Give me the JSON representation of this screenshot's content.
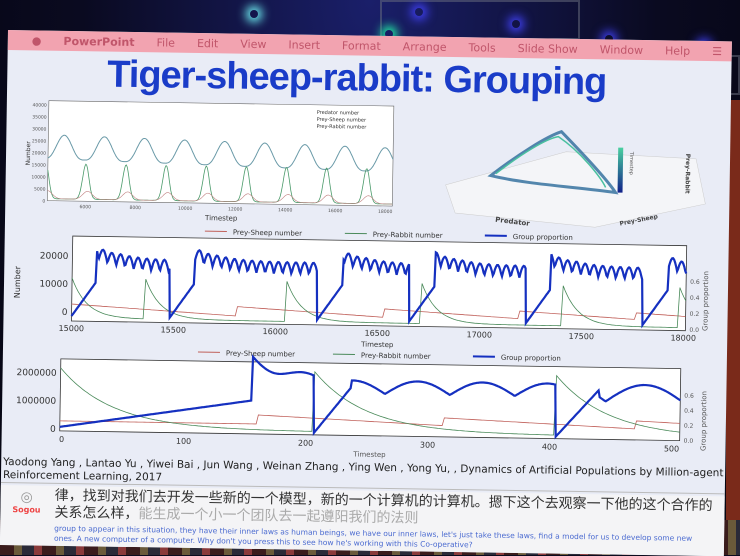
{
  "menubar": {
    "app": "PowerPoint",
    "items": [
      "File",
      "Edit",
      "View",
      "Insert",
      "Format",
      "Arrange",
      "Tools",
      "Slide Show",
      "Window",
      "Help"
    ]
  },
  "slide": {
    "title": "Tiger-sheep-rabbit: Grouping",
    "chart_top": {
      "ylabel": "Number",
      "xlabel": "Timestep",
      "legend": [
        "Predator number",
        "Prey-Sheep number",
        "Prey-Rabbit number"
      ],
      "yticks": [
        "0",
        "5000",
        "10000",
        "15000",
        "20000",
        "25000",
        "30000",
        "35000",
        "40000"
      ],
      "xticks": [
        "6000",
        "8000",
        "10000",
        "12000",
        "14000",
        "16000",
        "18000"
      ]
    },
    "chart_3d": {
      "xlabel": "Predator",
      "ylabel": "Prey-Sheep",
      "zlabel": "Prey-Rabbit",
      "colorbar_label": "Timestep"
    },
    "chart_mid": {
      "ylabel": "Number",
      "y2label": "Group proportion",
      "xlabel": "Timestep",
      "legend": [
        "Prey-Sheep number",
        "Prey-Rabbit number",
        "Group proportion"
      ],
      "yticks": [
        "0",
        "10000",
        "20000"
      ],
      "y2ticks": [
        "0.0",
        "0.2",
        "0.4",
        "0.6"
      ],
      "xticks": [
        "15000",
        "15500",
        "16000",
        "16500",
        "17000",
        "17500",
        "18000"
      ]
    },
    "chart_bottom": {
      "y2label": "Group proportion",
      "xlabel": "Timestep",
      "legend": [
        "Prey-Sheep number",
        "Prey-Rabbit number",
        "Group proportion"
      ],
      "yticks": [
        "0",
        "1000000",
        "2000000"
      ],
      "y2ticks": [
        "0.0",
        "0.2",
        "0.4",
        "0.6"
      ],
      "xticks": [
        "0",
        "100",
        "200",
        "300",
        "400",
        "500"
      ]
    },
    "citation": "Yaodong Yang , Lantao Yu , Yiwei Bai , Jun Wang , Weinan Zhang , Ying Wen , Yong Yu, , Dynamics of Artificial Populations by Million-agent Reinforcement Learning, 2017"
  },
  "subtitles": {
    "logo_text": "Sogou",
    "zh_line1": "律，找到对我们去开发一些新的一个模型，新的一个计算机的计算机。摁下这个去观察一下他的这个合作的",
    "zh_line2a": "关系怎么样，",
    "zh_line2b": "能生成一个小一个团队去一起遵阳我们的法则",
    "en": "group to appear in this situation, they have their inner laws as human beings, we have our inner laws, let's just take these laws, find a model for us to develop some new ones. A new computer of a computer. Why don't you press this to see how he's working with this Co-operative?"
  },
  "colors": {
    "title": "#1a3cc8",
    "group": "#1530c0",
    "sheep": "#c0605a",
    "rabbit": "#4a9a6a",
    "predator": "#6a9aa8",
    "menubar": "#f2a3b0"
  }
}
